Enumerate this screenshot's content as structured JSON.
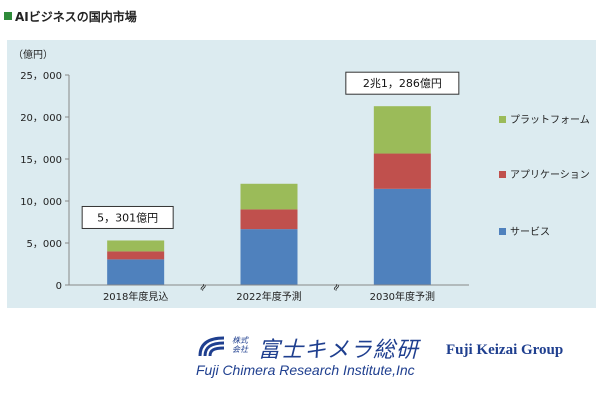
{
  "page": {
    "title": "AIビジネスの国内市場"
  },
  "chart_data": {
    "type": "bar",
    "stacked": true,
    "unit_label": "（億円）",
    "categories": [
      "2018年度見込",
      "2022年度予測",
      "2030年度予測"
    ],
    "series": [
      {
        "name": "サービス",
        "color": "#4f81bd",
        "values": [
          3050,
          6650,
          11450
        ]
      },
      {
        "name": "アプリケーション",
        "color": "#c0504d",
        "values": [
          950,
          2350,
          4200
        ]
      },
      {
        "name": "プラットフォーム",
        "color": "#9bbb59",
        "values": [
          1301,
          3050,
          5636
        ]
      }
    ],
    "totals_labels": [
      "5，301億円",
      "",
      "2兆1，286億円"
    ],
    "yticks": [
      "0",
      "5，000",
      "10，000",
      "15，000",
      "20，000",
      "25，000"
    ],
    "ylim": [
      0,
      25000
    ],
    "grid": false,
    "legend_position": "right",
    "axis_break_marks": [
      "≈",
      "≈"
    ]
  },
  "branding": {
    "company_small": "株式\n会社",
    "company_jp": "富士キメラ総研",
    "company_en": "Fuji Chimera Research Institute,Inc",
    "group": "Fuji Keizai Group"
  }
}
